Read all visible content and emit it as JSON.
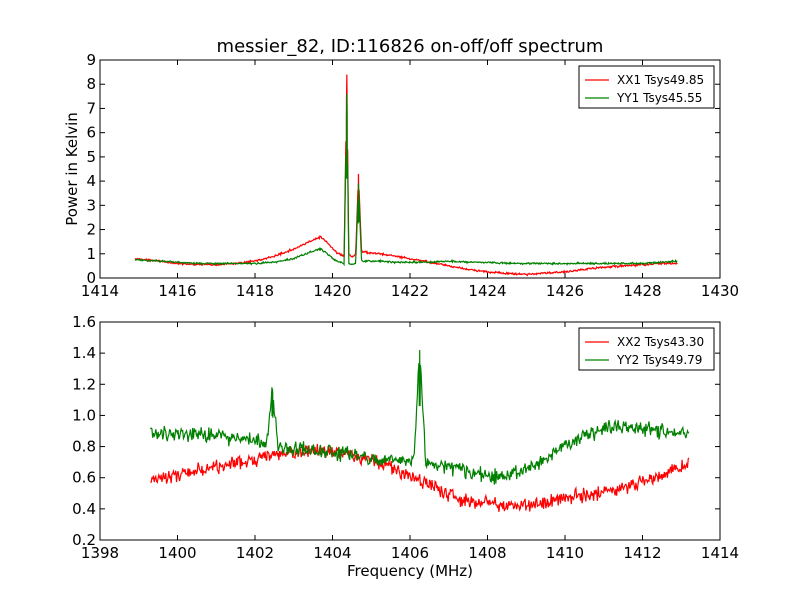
{
  "chart_data": [
    {
      "type": "line",
      "title": "messier_82, ID:116826 on-off/off spectrum",
      "xlabel": "",
      "ylabel": "Power in Kelvin",
      "xlim": [
        1414,
        1430
      ],
      "ylim": [
        0,
        9
      ],
      "xticks": [
        1414,
        1416,
        1418,
        1420,
        1422,
        1424,
        1426,
        1428,
        1430
      ],
      "yticks": [
        0,
        1,
        2,
        3,
        4,
        5,
        6,
        7,
        8,
        9
      ],
      "grid": false,
      "legend_position": "top-right",
      "series": [
        {
          "name": "XX1 Tsys49.85",
          "color": "#ff0000",
          "x": [
            1414.9,
            1415.5,
            1416.0,
            1416.5,
            1417.0,
            1417.5,
            1418.0,
            1418.5,
            1419.0,
            1419.4,
            1419.7,
            1419.9,
            1420.1,
            1420.3,
            1420.37,
            1420.42,
            1420.5,
            1420.6,
            1420.67,
            1420.75,
            1420.9,
            1421.2,
            1421.6,
            1422.0,
            1422.5,
            1423.0,
            1423.5,
            1424.0,
            1424.5,
            1425.0,
            1425.5,
            1426.0,
            1426.5,
            1427.0,
            1427.5,
            1428.0,
            1428.5,
            1428.9
          ],
          "y": [
            0.8,
            0.7,
            0.6,
            0.55,
            0.55,
            0.6,
            0.7,
            0.9,
            1.2,
            1.5,
            1.7,
            1.4,
            1.05,
            0.9,
            8.4,
            1.0,
            0.85,
            1.0,
            4.3,
            1.1,
            1.05,
            1.0,
            0.9,
            0.8,
            0.65,
            0.5,
            0.35,
            0.25,
            0.2,
            0.15,
            0.2,
            0.25,
            0.35,
            0.45,
            0.5,
            0.55,
            0.6,
            0.6
          ]
        },
        {
          "name": "YY1 Tsys45.55",
          "color": "#008000",
          "x": [
            1414.9,
            1415.5,
            1416.0,
            1416.5,
            1417.0,
            1417.5,
            1418.0,
            1418.5,
            1419.0,
            1419.4,
            1419.7,
            1419.9,
            1420.1,
            1420.3,
            1420.37,
            1420.42,
            1420.5,
            1420.6,
            1420.67,
            1420.75,
            1420.9,
            1421.2,
            1421.6,
            1422.0,
            1422.5,
            1423.0,
            1423.5,
            1424.0,
            1424.5,
            1425.0,
            1425.5,
            1426.0,
            1426.5,
            1427.0,
            1427.5,
            1428.0,
            1428.5,
            1428.9
          ],
          "y": [
            0.75,
            0.7,
            0.65,
            0.6,
            0.6,
            0.6,
            0.6,
            0.65,
            0.8,
            1.05,
            1.2,
            0.95,
            0.7,
            0.6,
            7.6,
            0.6,
            0.55,
            0.6,
            3.9,
            0.7,
            0.7,
            0.7,
            0.65,
            0.65,
            0.65,
            0.7,
            0.65,
            0.65,
            0.6,
            0.6,
            0.6,
            0.6,
            0.6,
            0.6,
            0.6,
            0.6,
            0.65,
            0.7
          ]
        }
      ]
    },
    {
      "type": "line",
      "title": "",
      "xlabel": "Frequency (MHz)",
      "ylabel": "",
      "xlim": [
        1398,
        1414
      ],
      "ylim": [
        0.2,
        1.6
      ],
      "xticks": [
        1398,
        1400,
        1402,
        1404,
        1406,
        1408,
        1410,
        1412,
        1414
      ],
      "yticks": [
        0.2,
        0.4,
        0.6,
        0.8,
        1.0,
        1.2,
        1.4,
        1.6
      ],
      "ytick_labels": [
        "0.2",
        "0.4",
        "0.6",
        "0.8",
        "1.0",
        "1.2",
        "1.4",
        "1.6"
      ],
      "grid": false,
      "legend_position": "top-right",
      "series": [
        {
          "name": "XX2 Tsys43.30",
          "color": "#ff0000",
          "x": [
            1399.3,
            1399.8,
            1400.3,
            1400.8,
            1401.3,
            1401.8,
            1402.3,
            1402.8,
            1403.3,
            1403.8,
            1404.3,
            1404.8,
            1405.3,
            1405.8,
            1406.3,
            1406.8,
            1407.3,
            1407.8,
            1408.3,
            1408.8,
            1409.3,
            1409.8,
            1410.3,
            1410.8,
            1411.3,
            1411.8,
            1412.3,
            1412.8,
            1413.2
          ],
          "y": [
            0.58,
            0.6,
            0.63,
            0.66,
            0.68,
            0.7,
            0.74,
            0.76,
            0.76,
            0.77,
            0.75,
            0.72,
            0.68,
            0.63,
            0.58,
            0.52,
            0.46,
            0.44,
            0.42,
            0.42,
            0.44,
            0.46,
            0.48,
            0.5,
            0.53,
            0.56,
            0.6,
            0.65,
            0.7
          ]
        },
        {
          "name": "YY2 Tsys49.79",
          "color": "#008000",
          "x": [
            1399.3,
            1399.8,
            1400.3,
            1400.8,
            1401.3,
            1401.8,
            1402.3,
            1402.45,
            1402.6,
            1402.8,
            1403.3,
            1403.8,
            1404.3,
            1404.8,
            1405.3,
            1405.8,
            1406.1,
            1406.25,
            1406.4,
            1406.8,
            1407.3,
            1407.8,
            1408.3,
            1408.8,
            1409.3,
            1409.8,
            1410.3,
            1410.8,
            1411.3,
            1411.8,
            1412.3,
            1412.8,
            1413.2
          ],
          "y": [
            0.9,
            0.88,
            0.88,
            0.87,
            0.86,
            0.84,
            0.82,
            1.17,
            0.8,
            0.8,
            0.78,
            0.77,
            0.75,
            0.74,
            0.72,
            0.7,
            0.7,
            1.42,
            0.7,
            0.68,
            0.65,
            0.62,
            0.6,
            0.63,
            0.7,
            0.78,
            0.85,
            0.9,
            0.93,
            0.92,
            0.9,
            0.88,
            0.88
          ]
        }
      ]
    }
  ]
}
